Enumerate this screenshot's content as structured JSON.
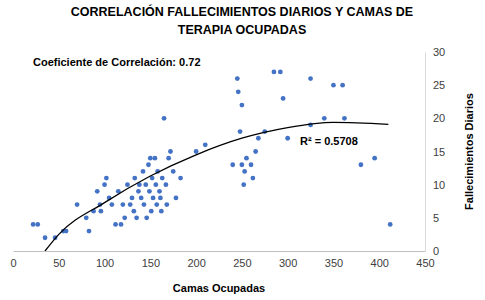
{
  "chart_data": {
    "type": "scatter",
    "title": [
      "CORRELACIÓN FALLECIMIENTOS DIARIOS Y CAMAS DE",
      "TERAPIA OCUPADAS"
    ],
    "x_label": "Camas Ocupadas",
    "y_label": "Fallecimientos Diarios",
    "annotations": [
      "Coeficiente de Correlación: 0.72",
      "R² = 0.5708"
    ],
    "xlim": [
      0,
      450
    ],
    "xticks": [
      0,
      50,
      100,
      150,
      200,
      250,
      300,
      350,
      400,
      450
    ],
    "ylim": [
      0,
      30
    ],
    "yticks": [
      0,
      5,
      10,
      15,
      20,
      25,
      30
    ],
    "grid": false,
    "series": [
      {
        "type": "scatter",
        "color": "#4472c4",
        "marker": "circle",
        "x": [
          22,
          27,
          35,
          46,
          55,
          58,
          70,
          80,
          83,
          88,
          92,
          95,
          96,
          100,
          102,
          105,
          108,
          112,
          115,
          118,
          120,
          122,
          125,
          128,
          130,
          132,
          133,
          135,
          137,
          138,
          140,
          142,
          143,
          145,
          146,
          148,
          149,
          150,
          151,
          152,
          153,
          155,
          156,
          157,
          158,
          160,
          161,
          162,
          163,
          165,
          167,
          168,
          170,
          172,
          175,
          178,
          183,
          200,
          210,
          240,
          245,
          246,
          248,
          250,
          250,
          252,
          253,
          255,
          260,
          262,
          265,
          268,
          275,
          285,
          292,
          295,
          300,
          325,
          325,
          340,
          350,
          360,
          362,
          380,
          395,
          412
        ],
        "values": [
          4,
          4,
          2,
          2,
          3,
          3,
          7,
          5,
          3,
          6,
          9,
          7,
          6,
          10,
          11,
          8,
          7,
          4,
          9,
          4,
          7,
          5,
          10,
          7,
          8,
          6,
          11,
          5,
          9,
          10,
          8,
          12,
          7,
          10,
          5,
          13,
          9,
          14,
          6,
          11,
          8,
          14,
          10,
          7,
          12,
          9,
          8,
          6,
          11,
          20,
          10,
          7,
          14,
          15,
          12,
          8,
          11,
          15,
          16,
          13,
          26,
          24,
          18,
          13,
          22,
          10,
          12,
          14,
          13,
          11,
          15,
          17,
          18,
          27,
          27,
          23,
          17,
          26,
          19,
          20,
          25,
          25,
          20,
          13,
          14,
          4
        ]
      },
      {
        "type": "line",
        "color": "#000000",
        "line_style": "solid",
        "x": [
          35,
          50,
          100,
          150,
          200,
          250,
          300,
          350,
          410
        ],
        "values": [
          0,
          2.5,
          7.3,
          11.3,
          14.5,
          17,
          18.6,
          19.4,
          19.1
        ]
      }
    ]
  }
}
